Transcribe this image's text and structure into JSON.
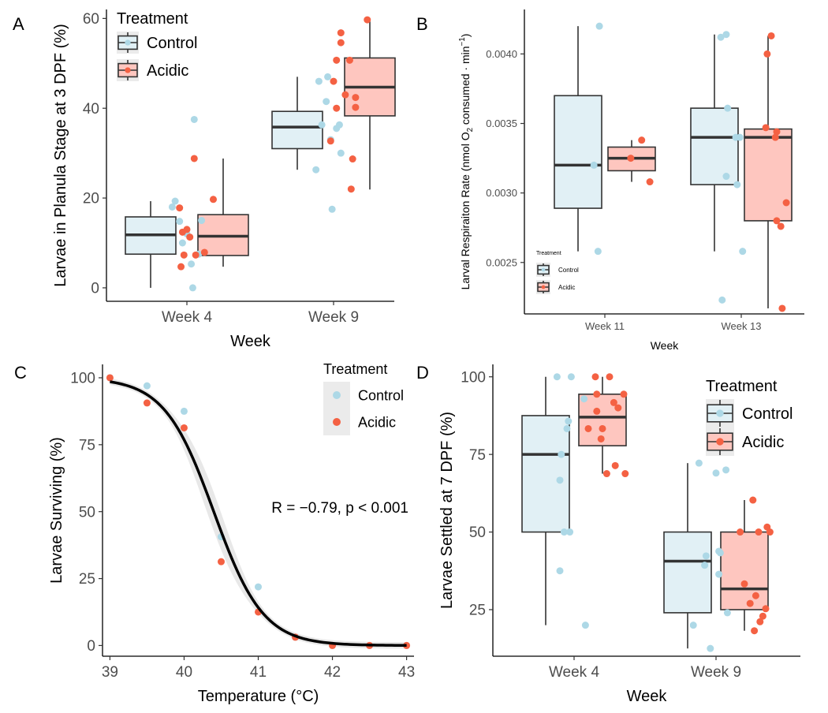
{
  "colors": {
    "control": "#add8e6",
    "acidic": "#f46143",
    "control_box": "#e1f0f5",
    "acidic_box": "#fec6bf",
    "ribbon": "#e8e8e8"
  },
  "chart_data": [
    {
      "panel": "A",
      "type": "box",
      "xlabel": "Week",
      "ylabel": "Larvae in Planula Stage at 3 DPF (%)",
      "categories": [
        "Week 4",
        "Week 9"
      ],
      "ylim": [
        -3,
        62
      ],
      "yticks": [
        0,
        20,
        40,
        60
      ],
      "legend": {
        "title": "Treatment",
        "entries": [
          "Control",
          "Acidic"
        ],
        "position": "top-left"
      },
      "series": [
        {
          "name": "Control",
          "color": "#add8e6",
          "boxes": [
            {
              "q1": 7.5,
              "median": 11.8,
              "q3": 15.8,
              "lo": 0,
              "hi": 19.3
            },
            {
              "q1": 31,
              "median": 35.8,
              "q3": 39.3,
              "lo": 26.3,
              "hi": 47
            }
          ],
          "points": [
            [
              0.9,
              18
            ],
            [
              0.92,
              19.3
            ],
            [
              1.05,
              37.5
            ],
            [
              0.95,
              14.8
            ],
            [
              1.1,
              15
            ],
            [
              1.0,
              12
            ],
            [
              0.97,
              10
            ],
            [
              1.08,
              7.5
            ],
            [
              1.03,
              5.3
            ],
            [
              1.04,
              0
            ],
            [
              1.9,
              46
            ],
            [
              1.96,
              47
            ],
            [
              1.95,
              41.5
            ],
            [
              1.92,
              36.3
            ],
            [
              2.02,
              35.5
            ],
            [
              2.04,
              36.3
            ],
            [
              1.98,
              33
            ],
            [
              2.05,
              30
            ],
            [
              1.88,
              26.3
            ],
            [
              1.99,
              17.5
            ]
          ]
        },
        {
          "name": "Acidic",
          "color": "#f46143",
          "boxes": [
            {
              "q1": 7.2,
              "median": 11.5,
              "q3": 16.3,
              "lo": 4.7,
              "hi": 28.8
            },
            {
              "q1": 38.3,
              "median": 44.7,
              "q3": 51.2,
              "lo": 21.9,
              "hi": 59.7
            }
          ],
          "points": [
            [
              1.05,
              28.8
            ],
            [
              1.18,
              19.7
            ],
            [
              0.95,
              17.8
            ],
            [
              1.0,
              13
            ],
            [
              0.97,
              12.4
            ],
            [
              1.02,
              11.3
            ],
            [
              0.98,
              7.3
            ],
            [
              1.06,
              7.3
            ],
            [
              1.12,
              7.9
            ],
            [
              0.96,
              4.7
            ],
            [
              2.23,
              59.7
            ],
            [
              2.05,
              56.8
            ],
            [
              2.05,
              54.6
            ],
            [
              2.02,
              50.7
            ],
            [
              2.11,
              50.7
            ],
            [
              2.0,
              46
            ],
            [
              2.08,
              43
            ],
            [
              2.15,
              42.4
            ],
            [
              2.02,
              40
            ],
            [
              2.15,
              40.2
            ],
            [
              1.98,
              32.7
            ],
            [
              2.13,
              28.7
            ],
            [
              2.12,
              22
            ]
          ]
        }
      ]
    },
    {
      "panel": "B",
      "type": "box",
      "xlabel": "Week",
      "ylabel": "Larval Respiraiton Rate (nmol O",
      "ylabel_sub": "2",
      "ylabel_mid": " consumed · min",
      "ylabel_sup": "−1",
      "ylabel_end": ")",
      "categories": [
        "Week 11",
        "Week 13"
      ],
      "ylim": [
        0.00213,
        0.00432
      ],
      "yticks": [
        0.0025,
        0.003,
        0.0035,
        0.004
      ],
      "yticklabels": [
        "0.0025",
        "0.0030",
        "0.0035",
        "0.0040"
      ],
      "legend": {
        "title": "Treatment",
        "entries": [
          "Control",
          "Acidic"
        ],
        "position": "bottom-left"
      },
      "series": [
        {
          "name": "Control",
          "color": "#add8e6",
          "boxes": [
            {
              "q1": 0.00289,
              "median": 0.0032,
              "q3": 0.0037,
              "lo": 0.00258,
              "hi": 0.0042
            },
            {
              "q1": 0.00306,
              "median": 0.0034,
              "q3": 0.00361,
              "lo": 0.00258,
              "hi": 0.00414
            }
          ],
          "points": [
            [
              0.96,
              0.0042
            ],
            [
              0.92,
              0.0032
            ],
            [
              0.95,
              0.00258
            ],
            [
              1.85,
              0.00412
            ],
            [
              1.89,
              0.00414
            ],
            [
              1.9,
              0.00361
            ],
            [
              1.96,
              0.0034
            ],
            [
              1.99,
              0.0034
            ],
            [
              1.89,
              0.00312
            ],
            [
              1.97,
              0.00306
            ],
            [
              2.01,
              0.00258
            ],
            [
              1.86,
              0.00223
            ]
          ]
        },
        {
          "name": "Acidic",
          "color": "#f46143",
          "boxes": [
            {
              "q1": 0.00316,
              "median": 0.00325,
              "q3": 0.00333,
              "lo": 0.00308,
              "hi": 0.00338
            },
            {
              "q1": 0.0028,
              "median": 0.0034,
              "q3": 0.00346,
              "lo": 0.00217,
              "hi": 0.00413
            }
          ],
          "points": [
            [
              1.27,
              0.00338
            ],
            [
              1.19,
              0.00325
            ],
            [
              1.33,
              0.00308
            ],
            [
              2.22,
              0.00413
            ],
            [
              2.19,
              0.004
            ],
            [
              2.18,
              0.00347
            ],
            [
              2.26,
              0.00344
            ],
            [
              2.25,
              0.0034
            ],
            [
              2.33,
              0.00293
            ],
            [
              2.26,
              0.0028
            ],
            [
              2.29,
              0.00276
            ],
            [
              2.3,
              0.00217
            ]
          ]
        }
      ]
    },
    {
      "panel": "C",
      "type": "scatter",
      "xlabel": "Temperature (°C)",
      "ylabel": "Larvae Surviving (%)",
      "xlim": [
        38.9,
        43.1
      ],
      "ylim": [
        -4,
        105
      ],
      "xticks": [
        39,
        40,
        41,
        42,
        43
      ],
      "yticks": [
        0,
        25,
        50,
        75,
        100
      ],
      "annotation": "R = −0.79, p < 0.001",
      "legend": {
        "title": "Treatment",
        "entries": [
          "Control",
          "Acidic"
        ],
        "position": "top-right"
      },
      "fit": {
        "type": "logistic",
        "midpoint": 40.4,
        "slope": 3.0
      },
      "series": [
        {
          "name": "Control",
          "color": "#add8e6",
          "points": [
            [
              39,
              100
            ],
            [
              39.5,
              97
            ],
            [
              40,
              87.5
            ],
            [
              40.5,
              40.6
            ],
            [
              41,
              21.9
            ],
            [
              41.5,
              3.1
            ],
            [
              42,
              0
            ],
            [
              42.5,
              0
            ],
            [
              43,
              0
            ]
          ]
        },
        {
          "name": "Acidic",
          "color": "#f46143",
          "points": [
            [
              39,
              100
            ],
            [
              39.5,
              90.6
            ],
            [
              40,
              81.3
            ],
            [
              40.5,
              31.3
            ],
            [
              41,
              12.5
            ],
            [
              41.5,
              3.1
            ],
            [
              42,
              0
            ],
            [
              42.5,
              0
            ],
            [
              43,
              0
            ]
          ]
        }
      ]
    },
    {
      "panel": "D",
      "type": "box",
      "xlabel": "Week",
      "ylabel": "Larvae Settled at 7 DPF (%)",
      "categories": [
        "Week 4",
        "Week 9"
      ],
      "ylim": [
        10,
        104
      ],
      "yticks": [
        25,
        50,
        75,
        100
      ],
      "legend": {
        "title": "Treatment",
        "entries": [
          "Control",
          "Acidic"
        ],
        "position": "top-right"
      },
      "series": [
        {
          "name": "Control",
          "color": "#add8e6",
          "boxes": [
            {
              "q1": 50,
              "median": 75,
              "q3": 87.5,
              "lo": 20,
              "hi": 100
            },
            {
              "q1": 24,
              "median": 40.6,
              "q3": 50,
              "lo": 12.5,
              "hi": 72.2
            }
          ],
          "points": [
            [
              0.88,
              100
            ],
            [
              0.98,
              100
            ],
            [
              1.07,
              92.9
            ],
            [
              0.96,
              85.7
            ],
            [
              0.95,
              83.3
            ],
            [
              0.91,
              75
            ],
            [
              0.9,
              66.7
            ],
            [
              0.93,
              50
            ],
            [
              0.97,
              50
            ],
            [
              0.9,
              37.5
            ],
            [
              1.08,
              20
            ],
            [
              1.88,
              72.2
            ],
            [
              2.0,
              69
            ],
            [
              2.07,
              70
            ],
            [
              2.02,
              43.8
            ],
            [
              2.03,
              43.3
            ],
            [
              1.93,
              42.3
            ],
            [
              1.92,
              39.3
            ],
            [
              2.02,
              36.4
            ],
            [
              2.08,
              24
            ],
            [
              1.84,
              20
            ],
            [
              1.96,
              12.5
            ]
          ]
        },
        {
          "name": "Acidic",
          "color": "#f46143",
          "boxes": [
            {
              "q1": 77.8,
              "median": 87,
              "q3": 94.4,
              "lo": 68.8,
              "hi": 100
            },
            {
              "q1": 25,
              "median": 31.7,
              "q3": 50,
              "lo": 18.2,
              "hi": 60.3
            }
          ],
          "points": [
            [
              1.15,
              100
            ],
            [
              1.25,
              100
            ],
            [
              1.16,
              94.4
            ],
            [
              1.35,
              94.4
            ],
            [
              1.28,
              91.7
            ],
            [
              1.31,
              90
            ],
            [
              1.16,
              88.9
            ],
            [
              1.1,
              83.3
            ],
            [
              1.2,
              83.3
            ],
            [
              1.19,
              80
            ],
            [
              1.29,
              71.4
            ],
            [
              1.23,
              68.8
            ],
            [
              1.36,
              68.8
            ],
            [
              2.26,
              60.3
            ],
            [
              2.17,
              50
            ],
            [
              2.36,
              51.6
            ],
            [
              2.38,
              50
            ],
            [
              2.3,
              50
            ],
            [
              2.2,
              33.3
            ],
            [
              2.28,
              29.5
            ],
            [
              2.24,
              27
            ],
            [
              2.35,
              25.3
            ],
            [
              2.33,
              22.9
            ],
            [
              2.31,
              21.1
            ],
            [
              2.27,
              18.2
            ]
          ]
        }
      ]
    }
  ]
}
